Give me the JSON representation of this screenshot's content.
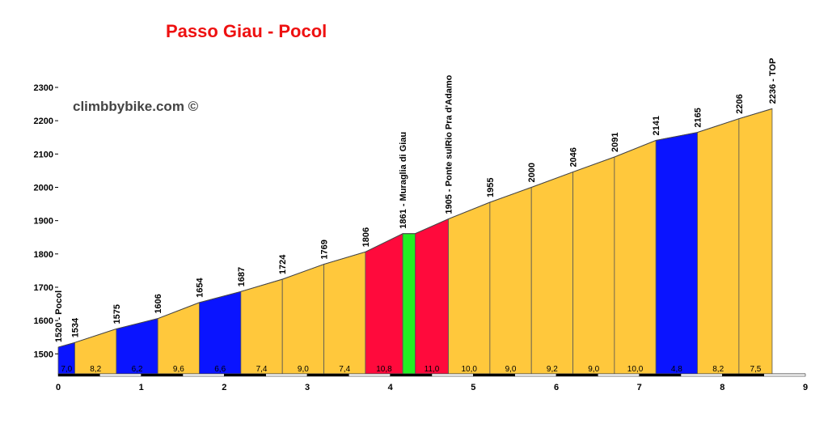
{
  "title": "Passo Giau - Pocol",
  "brand": {
    "text": "climbbybike.com",
    "copyright": "©"
  },
  "chart_data": {
    "type": "area",
    "title": "Passo Giau - Pocol",
    "xlabel": "",
    "ylabel": "",
    "xlim": [
      0,
      9
    ],
    "ylim": [
      1440,
      2300
    ],
    "x_ticks": [
      0,
      1,
      2,
      3,
      4,
      5,
      6,
      7,
      8,
      9
    ],
    "y_ticks": [
      1500,
      1600,
      1700,
      1800,
      1900,
      2000,
      2100,
      2200,
      2300
    ],
    "profile": [
      {
        "x": 0.0,
        "elev": 1520,
        "label": "1520 - Pocol"
      },
      {
        "x": 0.2,
        "elev": 1534,
        "label": "1534"
      },
      {
        "x": 0.7,
        "elev": 1575,
        "label": "1575"
      },
      {
        "x": 1.2,
        "elev": 1606,
        "label": "1606"
      },
      {
        "x": 1.7,
        "elev": 1654,
        "label": "1654"
      },
      {
        "x": 2.2,
        "elev": 1687,
        "label": "1687"
      },
      {
        "x": 2.7,
        "elev": 1724,
        "label": "1724"
      },
      {
        "x": 3.2,
        "elev": 1769,
        "label": "1769"
      },
      {
        "x": 3.7,
        "elev": 1806,
        "label": "1806"
      },
      {
        "x": 4.15,
        "elev": 1861,
        "label": "1861 - Muraglia di Giau"
      },
      {
        "x": 4.3,
        "elev": 1861,
        "label": ""
      },
      {
        "x": 4.7,
        "elev": 1905,
        "label": "1905 - Ponte sulRio Pra d'Adamo"
      },
      {
        "x": 5.2,
        "elev": 1955,
        "label": "1955"
      },
      {
        "x": 5.7,
        "elev": 2000,
        "label": "2000"
      },
      {
        "x": 6.2,
        "elev": 2046,
        "label": "2046"
      },
      {
        "x": 6.7,
        "elev": 2091,
        "label": "2091"
      },
      {
        "x": 7.2,
        "elev": 2141,
        "label": "2141"
      },
      {
        "x": 7.7,
        "elev": 2165,
        "label": "2165"
      },
      {
        "x": 8.2,
        "elev": 2206,
        "label": "2206"
      },
      {
        "x": 8.6,
        "elev": 2236,
        "label": "2236 - TOP"
      }
    ],
    "segments": [
      {
        "from": 0.0,
        "to": 0.2,
        "gradient": "7,0",
        "color": "#0a14ff"
      },
      {
        "from": 0.2,
        "to": 0.7,
        "gradient": "8,2",
        "color": "#ffc83c"
      },
      {
        "from": 0.7,
        "to": 1.2,
        "gradient": "6,2",
        "color": "#0a14ff"
      },
      {
        "from": 1.2,
        "to": 1.7,
        "gradient": "9,6",
        "color": "#ffc83c"
      },
      {
        "from": 1.7,
        "to": 2.2,
        "gradient": "6,6",
        "color": "#0a14ff"
      },
      {
        "from": 2.2,
        "to": 2.7,
        "gradient": "7,4",
        "color": "#ffc83c"
      },
      {
        "from": 2.7,
        "to": 3.2,
        "gradient": "9,0",
        "color": "#ffc83c"
      },
      {
        "from": 3.2,
        "to": 3.7,
        "gradient": "7,4",
        "color": "#ffc83c"
      },
      {
        "from": 3.7,
        "to": 4.15,
        "gradient": "10,8",
        "color": "#ff0a3c"
      },
      {
        "from": 4.15,
        "to": 4.3,
        "gradient": "",
        "color": "#22ee22"
      },
      {
        "from": 4.3,
        "to": 4.7,
        "gradient": "11,0",
        "color": "#ff0a3c"
      },
      {
        "from": 4.7,
        "to": 5.2,
        "gradient": "10,0",
        "color": "#ffc83c"
      },
      {
        "from": 5.2,
        "to": 5.7,
        "gradient": "9,0",
        "color": "#ffc83c"
      },
      {
        "from": 5.7,
        "to": 6.2,
        "gradient": "9,2",
        "color": "#ffc83c"
      },
      {
        "from": 6.2,
        "to": 6.7,
        "gradient": "9,0",
        "color": "#ffc83c"
      },
      {
        "from": 6.7,
        "to": 7.2,
        "gradient": "10,0",
        "color": "#ffc83c"
      },
      {
        "from": 7.2,
        "to": 7.7,
        "gradient": "4,8",
        "color": "#0a14ff"
      },
      {
        "from": 7.7,
        "to": 8.2,
        "gradient": "8,2",
        "color": "#ffc83c"
      },
      {
        "from": 8.2,
        "to": 8.6,
        "gradient": "7,5",
        "color": "#ffc83c"
      }
    ]
  }
}
